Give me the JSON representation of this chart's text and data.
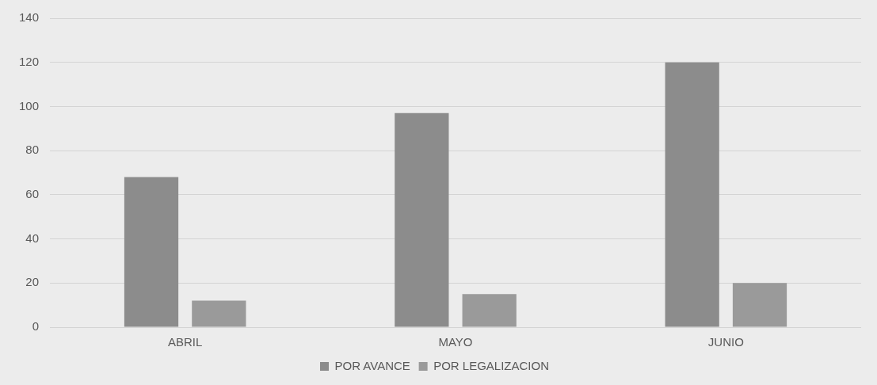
{
  "chart_data": {
    "type": "bar",
    "categories": [
      "ABRIL",
      "MAYO",
      "JUNIO"
    ],
    "series": [
      {
        "name": "POR AVANCE",
        "color": "#8c8c8c",
        "values": [
          68,
          97,
          120
        ]
      },
      {
        "name": "POR LEGALIZACION",
        "color": "#9a9a9a",
        "values": [
          12,
          15,
          20
        ]
      }
    ],
    "ylim": [
      0,
      140
    ],
    "yticks": [
      0,
      20,
      40,
      60,
      80,
      100,
      120,
      140
    ],
    "grid": "y",
    "legend": "bottom"
  }
}
